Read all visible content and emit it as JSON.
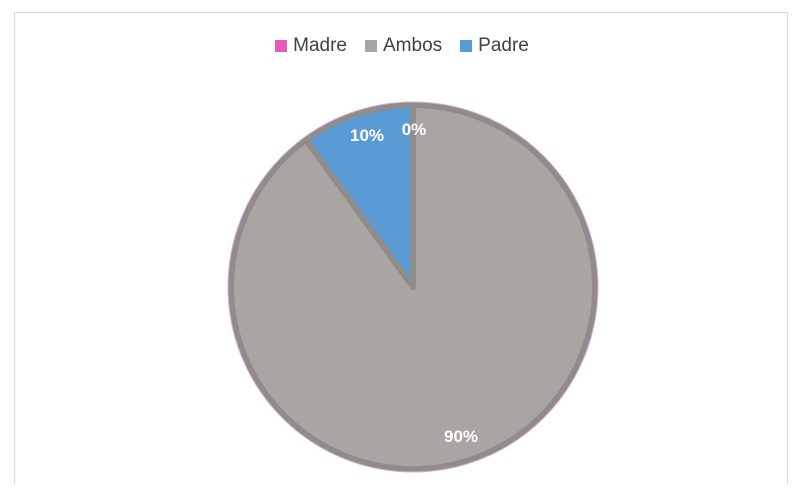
{
  "chart_data": {
    "type": "pie",
    "categories": [
      "Madre",
      "Ambos",
      "Padre"
    ],
    "values": [
      0,
      90,
      10
    ],
    "labels": [
      "0%",
      "90%",
      "10%"
    ],
    "colors": [
      "#e85ab4",
      "#a8a5a3",
      "#5b9bd5"
    ],
    "legend": {
      "position": "top",
      "entries": [
        "Madre",
        "Ambos",
        "Padre"
      ]
    }
  }
}
